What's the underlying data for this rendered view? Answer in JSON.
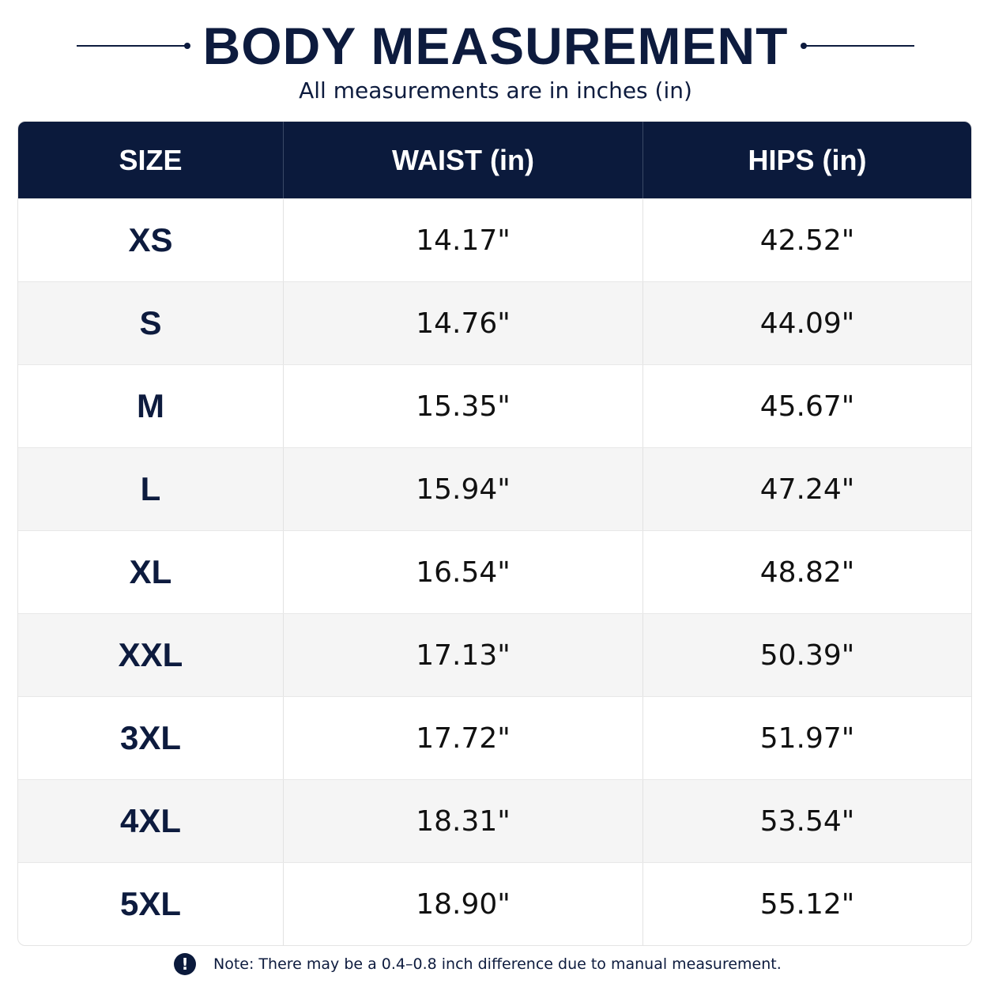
{
  "header": {
    "title": "BODY MEASUREMENT",
    "subtitle": "All measurements are in inches (in)"
  },
  "table": {
    "columns": [
      "SIZE",
      "WAIST (in)",
      "HIPS (in)"
    ],
    "rows": [
      [
        "XS",
        "14.17\"",
        "42.52\""
      ],
      [
        "S",
        "14.76\"",
        "44.09\""
      ],
      [
        "M",
        "15.35\"",
        "45.67\""
      ],
      [
        "L",
        "15.94\"",
        "47.24\""
      ],
      [
        "XL",
        "16.54\"",
        "48.82\""
      ],
      [
        "XXL",
        "17.13\"",
        "50.39\""
      ],
      [
        "3XL",
        "17.72\"",
        "51.97\""
      ],
      [
        "4XL",
        "18.31\"",
        "53.54\""
      ],
      [
        "5XL",
        "18.90\"",
        "55.12\""
      ]
    ]
  },
  "note": {
    "text": "Note: There may be a 0.4–0.8 inch difference due to manual measurement."
  }
}
